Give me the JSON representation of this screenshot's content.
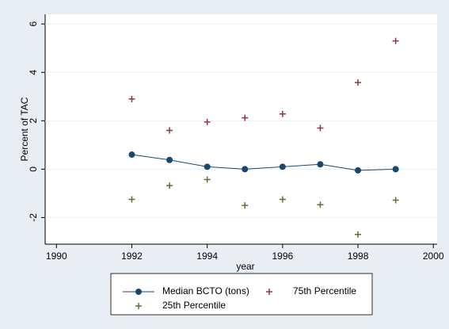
{
  "chart_data": {
    "type": "line",
    "x": [
      1992,
      1993,
      1994,
      1995,
      1996,
      1997,
      1998,
      1999
    ],
    "series": [
      {
        "name": "Median BCTO (tons)",
        "color": "#1a476f",
        "marker": "circle",
        "line": true,
        "values": [
          0.6,
          0.38,
          0.1,
          0.0,
          0.1,
          0.2,
          -0.05,
          0.0
        ]
      },
      {
        "name": "75th Percentile",
        "color": "#90353b",
        "marker": "plus",
        "line": false,
        "values": [
          2.9,
          1.6,
          1.95,
          2.12,
          2.28,
          1.7,
          3.58,
          5.3
        ]
      },
      {
        "name": "25th Percentile",
        "color": "#55752f",
        "marker": "plus",
        "line": false,
        "values": [
          -1.25,
          -0.68,
          -0.43,
          -1.5,
          -1.25,
          -1.47,
          -2.7,
          -1.28
        ]
      }
    ],
    "xlabel": "year",
    "ylabel": "Percent of TAC",
    "xlim": [
      1989.7,
      2000.1
    ],
    "xticks": [
      1990,
      1992,
      1994,
      1996,
      1998,
      2000
    ],
    "ylim": [
      -3.1,
      6.4
    ],
    "yticks": [
      -2,
      0,
      2,
      4,
      6
    ],
    "grid": true
  }
}
